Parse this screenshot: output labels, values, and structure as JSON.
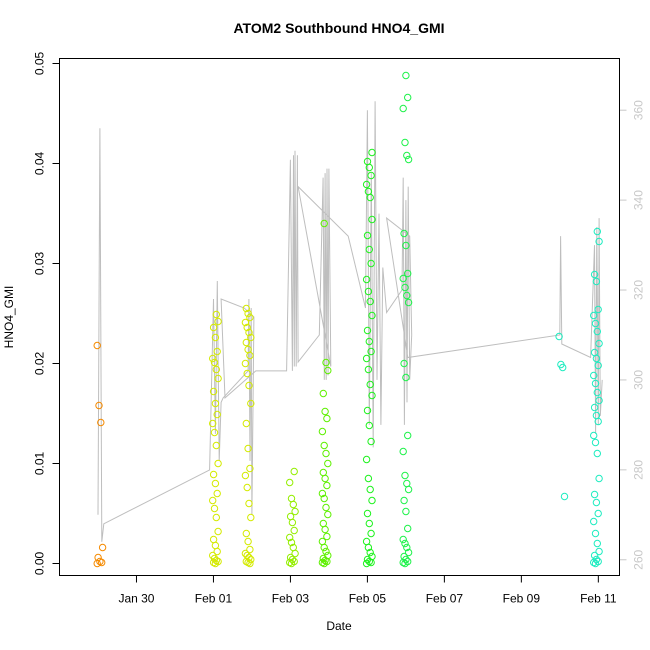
{
  "chart_data": {
    "type": "scatter",
    "title": "ATOM2 Southbound HNO4_GMI",
    "xlabel": "Date",
    "ylabel": "HNO4_GMI",
    "x_tick_labels": [
      "Jan 30",
      "Feb 01",
      "Feb 03",
      "Feb 05",
      "Feb 07",
      "Feb 09",
      "Feb 11"
    ],
    "x_tick_days": [
      30,
      32,
      34,
      36,
      38,
      40,
      42
    ],
    "xlim_days": [
      28.0,
      42.55
    ],
    "x_day_note": "days of January 2017 (Feb 01 = 32)",
    "y_ticks": [
      "0.00",
      "0.01",
      "0.02",
      "0.03",
      "0.04",
      "0.05"
    ],
    "ylim": [
      -0.0012,
      0.0505
    ],
    "secondary_y_ticks": [
      "260",
      "280",
      "300",
      "320",
      "340",
      "360"
    ],
    "secondary_ylim": [
      256.5,
      371.5
    ],
    "point_style": "open-circle",
    "gray_line_color": "#bebebe",
    "clusters": [
      {
        "day": 29.05,
        "color": "#f58a00",
        "values": [
          0.0218,
          0.0158,
          0.0141,
          0.0016,
          0.0006,
          0.0002,
          0.0001,
          0.0
        ]
      },
      {
        "day": 32.05,
        "color": "#d4ea00",
        "values": [
          0.0249,
          0.0242,
          0.0236,
          0.0226,
          0.0212,
          0.0205,
          0.0201,
          0.0194,
          0.0185,
          0.0172,
          0.016,
          0.0149,
          0.014,
          0.0131,
          0.0118,
          0.01,
          0.0089,
          0.008,
          0.007,
          0.0063,
          0.0055,
          0.0046,
          0.0032,
          0.0024,
          0.0018,
          0.0012,
          0.0008,
          0.0005,
          0.0003,
          0.0002,
          0.0001,
          0.0
        ]
      },
      {
        "day": 32.9,
        "color": "#d4ea00",
        "values": [
          0.0255,
          0.025,
          0.0246,
          0.0241,
          0.0236,
          0.0231,
          0.0226,
          0.0221,
          0.0214,
          0.0208,
          0.02,
          0.019,
          0.0178,
          0.016,
          0.014,
          0.0115,
          0.0095,
          0.0088,
          0.0076,
          0.006,
          0.0046,
          0.003,
          0.0022,
          0.0014,
          0.001,
          0.0008,
          0.0006,
          0.0004,
          0.0002,
          0.0001,
          0.0
        ]
      },
      {
        "day": 34.05,
        "color": "#94ee00",
        "values": [
          0.0092,
          0.0081,
          0.0065,
          0.0059,
          0.0052,
          0.0047,
          0.0041,
          0.0033,
          0.0026,
          0.0021,
          0.0016,
          0.001,
          0.0006,
          0.0004,
          0.0002,
          0.0001,
          0.0
        ]
      },
      {
        "day": 34.9,
        "color": "#5ef000",
        "values": [
          0.034,
          0.0201,
          0.0193,
          0.017,
          0.0152,
          0.0145,
          0.0132,
          0.0118,
          0.011,
          0.01,
          0.0091,
          0.0085,
          0.0078,
          0.007,
          0.0065,
          0.0056,
          0.0049,
          0.004,
          0.0034,
          0.0027,
          0.0022,
          0.0016,
          0.0012,
          0.0008,
          0.0005,
          0.0003,
          0.0002,
          0.0001,
          0.0
        ]
      },
      {
        "day": 36.05,
        "color": "#1ef21e",
        "values": [
          0.0411,
          0.0402,
          0.0396,
          0.0388,
          0.0379,
          0.0372,
          0.0366,
          0.0344,
          0.0328,
          0.0314,
          0.03,
          0.0284,
          0.0272,
          0.0262,
          0.0248,
          0.0233,
          0.0222,
          0.0212,
          0.0205,
          0.0194,
          0.0179,
          0.0168,
          0.0153,
          0.0138,
          0.0122,
          0.0104,
          0.0085,
          0.0074,
          0.0063,
          0.005,
          0.004,
          0.003,
          0.0022,
          0.0016,
          0.0011,
          0.0007,
          0.0004,
          0.0002,
          0.0001,
          0.0
        ]
      },
      {
        "day": 37.0,
        "color": "#1ef24a",
        "values": [
          0.0488,
          0.0466,
          0.0455,
          0.0421,
          0.0408,
          0.0404,
          0.033,
          0.0318,
          0.029,
          0.0285,
          0.0276,
          0.0268,
          0.0261,
          0.02,
          0.0186,
          0.0128,
          0.0112,
          0.0088,
          0.008,
          0.0074,
          0.0063,
          0.0052,
          0.0035,
          0.0024,
          0.002,
          0.0016,
          0.0011,
          0.0007,
          0.0004,
          0.0002,
          0.0001,
          0.0
        ]
      },
      {
        "day": 41.05,
        "color": "#1eecc0",
        "values": [
          0.0227,
          0.0199,
          0.0196,
          0.0067
        ]
      },
      {
        "day": 41.95,
        "color": "#1eecc0",
        "values": [
          0.0332,
          0.0322,
          0.0289,
          0.0282,
          0.0254,
          0.0248,
          0.024,
          0.0232,
          0.022,
          0.0211,
          0.0205,
          0.0198,
          0.0188,
          0.018,
          0.0171,
          0.0163,
          0.0156,
          0.0148,
          0.0142,
          0.0128,
          0.0121,
          0.011,
          0.0085,
          0.0069,
          0.0061,
          0.005,
          0.0042,
          0.003,
          0.002,
          0.0012,
          0.0008,
          0.0004,
          0.0002,
          0.0001,
          0.0
        ]
      }
    ],
    "gray_line_secondary": [
      [
        29.0,
        270
      ],
      [
        29.05,
        356
      ],
      [
        29.1,
        264
      ],
      [
        29.15,
        268
      ],
      [
        31.9,
        280
      ],
      [
        32.0,
        318
      ],
      [
        32.05,
        288
      ],
      [
        32.1,
        322
      ],
      [
        32.15,
        282
      ],
      [
        32.2,
        295
      ],
      [
        32.25,
        296
      ],
      [
        32.9,
        302
      ],
      [
        32.92,
        318
      ],
      [
        32.95,
        282
      ],
      [
        32.98,
        316
      ],
      [
        33.0,
        270
      ],
      [
        33.05,
        314
      ],
      [
        32.8,
        316
      ],
      [
        32.2,
        318
      ],
      [
        32.3,
        296
      ],
      [
        33.1,
        302
      ],
      [
        33.9,
        302
      ],
      [
        34.0,
        349
      ],
      [
        34.05,
        302
      ],
      [
        34.08,
        350
      ],
      [
        34.1,
        303
      ],
      [
        34.12,
        351
      ],
      [
        34.15,
        303
      ],
      [
        34.18,
        350
      ],
      [
        34.2,
        304
      ],
      [
        34.75,
        310
      ],
      [
        34.85,
        345
      ],
      [
        34.88,
        300
      ],
      [
        34.9,
        346
      ],
      [
        34.93,
        300
      ],
      [
        34.95,
        347
      ],
      [
        34.98,
        301
      ],
      [
        35.0,
        347
      ],
      [
        35.05,
        303
      ],
      [
        34.2,
        343
      ],
      [
        35.5,
        332
      ],
      [
        35.95,
        316
      ],
      [
        36.0,
        360
      ],
      [
        36.05,
        290
      ],
      [
        36.1,
        346
      ],
      [
        36.15,
        285
      ],
      [
        36.2,
        362
      ],
      [
        36.25,
        300
      ],
      [
        36.3,
        337
      ],
      [
        36.35,
        290
      ],
      [
        36.4,
        325
      ],
      [
        36.5,
        315
      ],
      [
        36.9,
        320
      ],
      [
        36.93,
        345
      ],
      [
        36.96,
        290
      ],
      [
        37.0,
        340
      ],
      [
        37.03,
        295
      ],
      [
        37.06,
        343
      ],
      [
        37.1,
        300
      ],
      [
        37.15,
        310
      ],
      [
        37.1,
        332
      ],
      [
        36.5,
        336
      ],
      [
        37.05,
        305
      ],
      [
        41.0,
        310
      ],
      [
        41.02,
        332
      ],
      [
        41.05,
        308
      ],
      [
        41.8,
        305
      ],
      [
        41.9,
        330
      ],
      [
        41.93,
        288
      ],
      [
        41.96,
        334
      ],
      [
        42.0,
        290
      ],
      [
        42.02,
        336
      ],
      [
        42.05,
        292
      ],
      [
        42.1,
        300
      ]
    ]
  }
}
